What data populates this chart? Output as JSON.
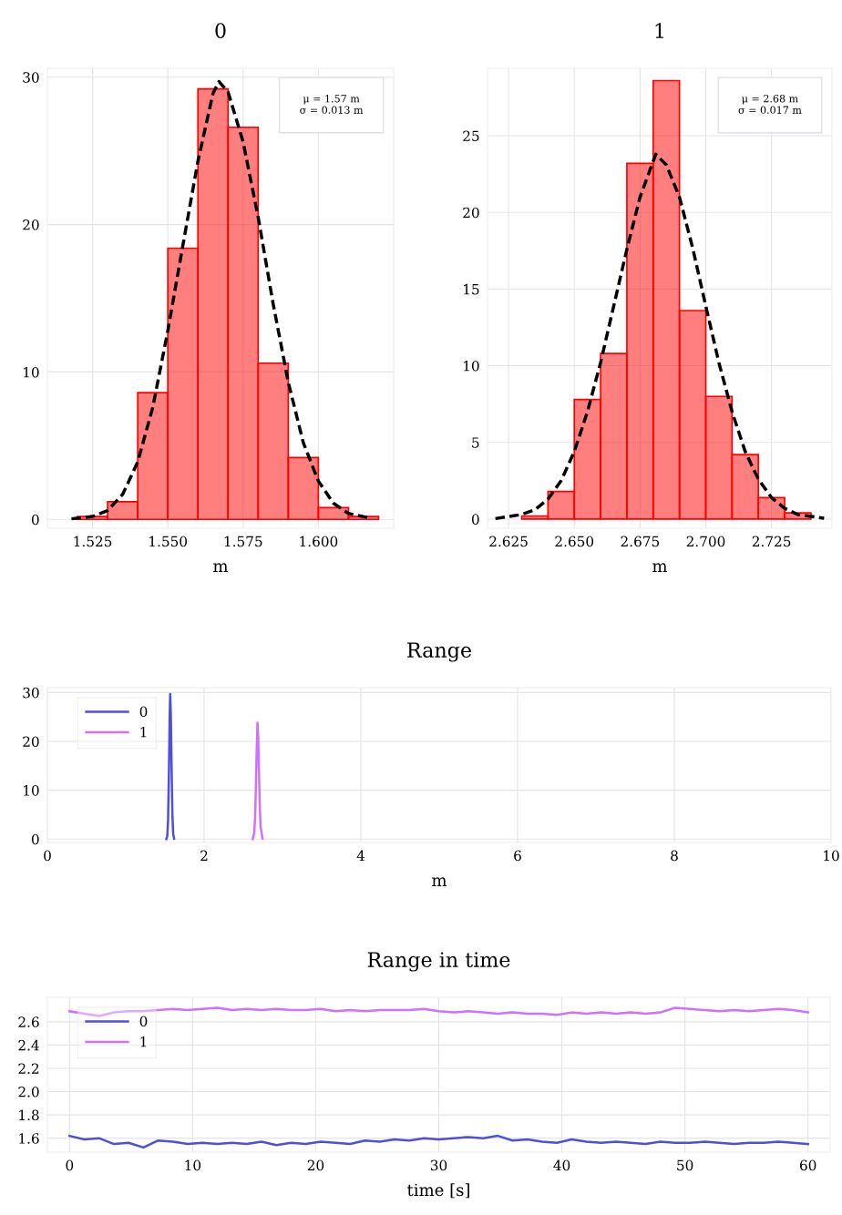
{
  "chart_data": [
    {
      "type": "histogram",
      "title": "0",
      "xlabel": "m",
      "bins": [
        1.52,
        1.53,
        1.54,
        1.55,
        1.56,
        1.57,
        1.58,
        1.59,
        1.6,
        1.61,
        1.62
      ],
      "values": [
        0.2,
        1.2,
        8.6,
        18.4,
        29.2,
        26.6,
        10.6,
        4.2,
        0.8,
        0.2
      ],
      "color": "#ff0000",
      "series": [
        {
          "type": "line",
          "color": "#000000",
          "line_style": "dashed",
          "x": [
            1.518,
            1.525,
            1.53,
            1.535,
            1.54,
            1.545,
            1.55,
            1.555,
            1.56,
            1.565,
            1.567,
            1.57,
            1.575,
            1.58,
            1.585,
            1.59,
            1.595,
            1.6,
            1.605,
            1.61,
            1.617
          ],
          "values": [
            0.04,
            0.2,
            0.6,
            1.7,
            3.9,
            7.6,
            12.8,
            18.6,
            24.3,
            28.9,
            29.7,
            29.0,
            25.6,
            20.5,
            14.6,
            9.3,
            5.2,
            2.6,
            1.1,
            0.4,
            0.1
          ]
        }
      ],
      "annotations": [
        "μ = 1.57 m\nσ = 0.013 m"
      ],
      "xlim": [
        1.51,
        1.625
      ],
      "ylim": [
        -0.6,
        30.6
      ],
      "xticks": [
        {
          "value": 1.525,
          "label": "1.525"
        },
        {
          "value": 1.55,
          "label": "1.550"
        },
        {
          "value": 1.575,
          "label": "1.575"
        },
        {
          "value": 1.6,
          "label": "1.600"
        }
      ],
      "yticks": [
        0,
        10,
        20,
        30
      ],
      "grid": true
    },
    {
      "type": "histogram",
      "title": "1",
      "xlabel": "m",
      "bins": [
        2.63,
        2.64,
        2.65,
        2.66,
        2.67,
        2.68,
        2.69,
        2.7,
        2.71,
        2.72,
        2.73,
        2.74
      ],
      "values": [
        0.2,
        1.8,
        7.8,
        10.8,
        23.2,
        28.6,
        13.6,
        8.0,
        4.2,
        1.4,
        0.4
      ],
      "color": "#ff0000",
      "series": [
        {
          "type": "line",
          "color": "#000000",
          "line_style": "dashed",
          "x": [
            2.62,
            2.63,
            2.635,
            2.64,
            2.645,
            2.65,
            2.655,
            2.66,
            2.665,
            2.67,
            2.675,
            2.681,
            2.685,
            2.69,
            2.695,
            2.7,
            2.705,
            2.71,
            2.715,
            2.72,
            2.725,
            2.73,
            2.735,
            2.745
          ],
          "values": [
            0.03,
            0.3,
            0.6,
            1.3,
            2.5,
            4.4,
            7.0,
            10.2,
            13.9,
            17.6,
            21.0,
            23.8,
            23.1,
            21.0,
            17.7,
            13.9,
            10.2,
            7.0,
            4.4,
            2.6,
            1.4,
            0.7,
            0.3,
            0.05
          ]
        }
      ],
      "annotations": [
        "μ = 2.68 m\nσ = 0.017 m"
      ],
      "xlim": [
        2.617,
        2.748
      ],
      "ylim": [
        -0.6,
        29.4
      ],
      "xticks": [
        {
          "value": 2.625,
          "label": "2.625"
        },
        {
          "value": 2.65,
          "label": "2.650"
        },
        {
          "value": 2.675,
          "label": "2.675"
        },
        {
          "value": 2.7,
          "label": "2.700"
        },
        {
          "value": 2.725,
          "label": "2.725"
        }
      ],
      "yticks": [
        0,
        5,
        10,
        15,
        20,
        25
      ],
      "grid": true
    },
    {
      "type": "line",
      "title": "Range",
      "xlabel": "m",
      "legend": "top left",
      "series": [
        {
          "name": "0",
          "color": "#4f4fdc",
          "x": [
            1.518,
            1.53,
            1.54,
            1.55,
            1.56,
            1.567,
            1.575,
            1.585,
            1.595,
            1.605,
            1.617
          ],
          "values": [
            0,
            0.6,
            3.9,
            12.8,
            24.3,
            29.7,
            25.6,
            14.6,
            5.2,
            1.1,
            0.1
          ]
        },
        {
          "name": "1",
          "color": "#d070ff",
          "x": [
            2.62,
            2.64,
            2.65,
            2.66,
            2.67,
            2.681,
            2.69,
            2.7,
            2.71,
            2.72,
            2.745
          ],
          "values": [
            0,
            1.3,
            4.4,
            10.2,
            17.6,
            23.8,
            21.0,
            13.9,
            7.0,
            2.6,
            0.1
          ]
        }
      ],
      "xlim": [
        0,
        10
      ],
      "ylim": [
        -0.7,
        31
      ],
      "xticks": [
        0,
        2,
        4,
        6,
        8,
        10
      ],
      "yticks": [
        0,
        10,
        20,
        30
      ],
      "grid": true
    },
    {
      "type": "line",
      "title": "Range in time",
      "xlabel": "time [s]",
      "legend": "top left",
      "x": [
        0,
        1.2,
        2.4,
        3.6,
        4.8,
        6,
        7.2,
        8.4,
        9.6,
        10.8,
        12,
        13.2,
        14.4,
        15.6,
        16.8,
        18,
        19.2,
        20.4,
        21.6,
        22.8,
        24,
        25.2,
        26.4,
        27.6,
        28.8,
        30,
        31.2,
        32.4,
        33.6,
        34.8,
        36,
        37.2,
        38.4,
        39.6,
        40.8,
        42,
        43.2,
        44.4,
        45.6,
        46.8,
        48,
        49.2,
        50.4,
        51.6,
        52.8,
        54,
        55.2,
        56.4,
        57.6,
        58.8,
        60
      ],
      "series": [
        {
          "name": "0",
          "color": "#4f4fdc",
          "values": [
            1.62,
            1.59,
            1.6,
            1.55,
            1.56,
            1.52,
            1.58,
            1.57,
            1.55,
            1.56,
            1.55,
            1.56,
            1.55,
            1.57,
            1.54,
            1.56,
            1.55,
            1.57,
            1.56,
            1.55,
            1.58,
            1.57,
            1.59,
            1.58,
            1.6,
            1.59,
            1.6,
            1.61,
            1.6,
            1.62,
            1.58,
            1.59,
            1.57,
            1.56,
            1.59,
            1.57,
            1.56,
            1.57,
            1.56,
            1.55,
            1.57,
            1.56,
            1.56,
            1.57,
            1.56,
            1.55,
            1.56,
            1.56,
            1.57,
            1.56,
            1.55
          ]
        },
        {
          "name": "1",
          "color": "#d070ff",
          "values": [
            2.69,
            2.67,
            2.65,
            2.68,
            2.69,
            2.69,
            2.7,
            2.71,
            2.7,
            2.71,
            2.72,
            2.7,
            2.71,
            2.7,
            2.71,
            2.7,
            2.7,
            2.71,
            2.69,
            2.7,
            2.69,
            2.7,
            2.7,
            2.7,
            2.71,
            2.69,
            2.68,
            2.69,
            2.68,
            2.67,
            2.68,
            2.67,
            2.67,
            2.66,
            2.68,
            2.67,
            2.68,
            2.67,
            2.68,
            2.67,
            2.68,
            2.72,
            2.71,
            2.7,
            2.69,
            2.7,
            2.69,
            2.7,
            2.71,
            2.7,
            2.68
          ]
        }
      ],
      "xlim": [
        -1.8,
        61.8
      ],
      "ylim": [
        1.48,
        2.81
      ],
      "xticks": [
        0,
        10,
        20,
        30,
        40,
        50,
        60
      ],
      "yticks": [
        1.6,
        1.8,
        {
          "value": 2.0,
          "label": "2.0"
        },
        2.2,
        2.4,
        2.6
      ],
      "grid": true
    }
  ]
}
